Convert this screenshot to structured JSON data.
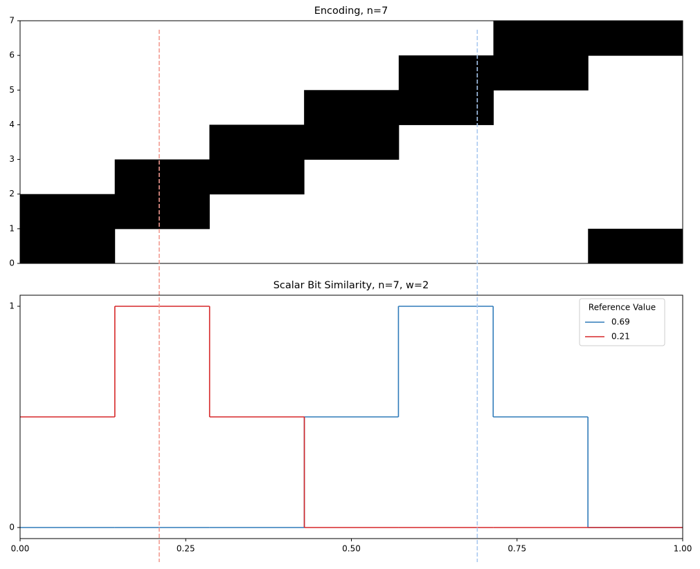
{
  "chart_data": [
    {
      "type": "heatmap",
      "title": "Encoding, n=7",
      "color": "#000000",
      "xlim": [
        0,
        1
      ],
      "ylim": [
        0,
        7
      ],
      "yticks": [
        0,
        1,
        2,
        3,
        4,
        5,
        6,
        7
      ],
      "cells": [
        [
          1,
          1,
          0,
          0,
          0,
          0,
          0
        ],
        [
          0,
          1,
          1,
          0,
          0,
          0,
          0
        ],
        [
          0,
          0,
          1,
          1,
          0,
          0,
          0
        ],
        [
          0,
          0,
          0,
          1,
          1,
          0,
          0
        ],
        [
          0,
          0,
          0,
          0,
          1,
          1,
          0
        ],
        [
          0,
          0,
          0,
          0,
          0,
          1,
          1
        ],
        [
          1,
          0,
          0,
          0,
          0,
          0,
          1
        ]
      ]
    },
    {
      "type": "line",
      "title": "Scalar Bit Similarity, n=7, w=2",
      "x": [
        0,
        0.143,
        0.286,
        0.429,
        0.571,
        0.714,
        0.857
      ],
      "series": [
        {
          "name": "0.69",
          "color": "#2f7ab9",
          "values": [
            0,
            0,
            0,
            0.5,
            1,
            0.5,
            0
          ]
        },
        {
          "name": "0.21",
          "color": "#d62728",
          "values": [
            0.5,
            1,
            0.5,
            0,
            0,
            0,
            0
          ]
        }
      ],
      "xlim": [
        0,
        1
      ],
      "xticks": [
        {
          "value": 0,
          "label": "0.00"
        },
        {
          "value": 0.25,
          "label": "0.25"
        },
        {
          "value": 0.5,
          "label": "0.50"
        },
        {
          "value": 0.75,
          "label": "0.75"
        },
        {
          "value": 1,
          "label": "1.00"
        }
      ],
      "ylim": [
        -0.05,
        1.05
      ],
      "yticks": [
        0,
        1
      ],
      "legend_title": "Reference Value",
      "legend": "upper right",
      "reference_lines": [
        {
          "x": 0.21,
          "color": "#f29a90"
        },
        {
          "x": 0.69,
          "color": "#a8c8f0"
        }
      ]
    }
  ]
}
